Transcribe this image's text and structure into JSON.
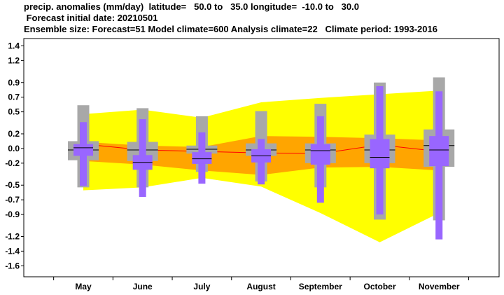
{
  "header": {
    "line1": "precip. anomalies (mm/day)  latitude=   50.0 to   35.0 longitude=  -10.0 to   30.0",
    "line2": " Forecast initial date: 20210501",
    "line3": "Ensemble size: Forecast=51 Model climate=600 Analysis climate=22   Climate period: 1993-2016"
  },
  "chart_data": {
    "type": "box",
    "title": "precip. anomalies (mm/day)",
    "categories": [
      "May",
      "June",
      "July",
      "August",
      "September",
      "October",
      "November"
    ],
    "yticks": [
      "1.4",
      "1.2",
      "0.9",
      "0.7",
      "0.5",
      "0.2",
      "0.0",
      "-0.2",
      "-0.5",
      "-0.7",
      "-0.9",
      "-1.2",
      "-1.4",
      "-1.6"
    ],
    "ylim": [
      -1.75,
      1.5
    ],
    "climate_band_outer": {
      "color": "#ffff00",
      "low": [
        -0.57,
        -0.53,
        -0.4,
        -0.52,
        -0.88,
        -1.28,
        -0.88
      ],
      "high": [
        0.47,
        0.53,
        0.42,
        0.63,
        0.69,
        0.74,
        0.79
      ]
    },
    "climate_band_inner": {
      "color": "#ffa500",
      "low": [
        -0.17,
        -0.22,
        -0.3,
        -0.36,
        -0.26,
        -0.25,
        -0.3
      ],
      "high": [
        0.09,
        0.04,
        0.02,
        0.17,
        0.16,
        0.14,
        0.11
      ]
    },
    "model_climate_median": {
      "color": "#ff0000",
      "values": [
        0.06,
        -0.02,
        -0.04,
        -0.06,
        -0.07,
        0.05,
        -0.04
      ]
    },
    "model_climate_boxes": {
      "color": "#a8a8a8",
      "whisker_low": [
        -0.53,
        -0.53,
        -0.32,
        -0.45,
        -0.53,
        -0.97,
        -0.98
      ],
      "q1": [
        -0.16,
        -0.17,
        -0.07,
        -0.1,
        -0.2,
        -0.2,
        -0.25
      ],
      "q3": [
        0.1,
        0.09,
        0.04,
        0.07,
        0.07,
        0.19,
        0.26
      ],
      "whisker_high": [
        0.59,
        0.55,
        0.44,
        0.51,
        0.61,
        0.9,
        0.97
      ],
      "median": [
        -0.02,
        -0.02,
        -0.01,
        -0.02,
        -0.02,
        -0.02,
        0.04
      ]
    },
    "forecast_boxes": {
      "color": "#9966ff",
      "whisker_low": [
        -0.51,
        -0.66,
        -0.48,
        -0.49,
        -0.74,
        -0.9,
        -1.24
      ],
      "q1": [
        -0.1,
        -0.29,
        -0.21,
        -0.19,
        -0.22,
        -0.27,
        -0.24
      ],
      "q3": [
        0.06,
        -0.09,
        -0.05,
        -0.01,
        0.06,
        0.13,
        0.17
      ],
      "whisker_high": [
        0.36,
        0.4,
        0.22,
        0.13,
        0.44,
        0.85,
        0.78
      ],
      "median": [
        0.01,
        -0.19,
        -0.14,
        -0.1,
        -0.03,
        -0.12,
        -0.02
      ]
    }
  }
}
